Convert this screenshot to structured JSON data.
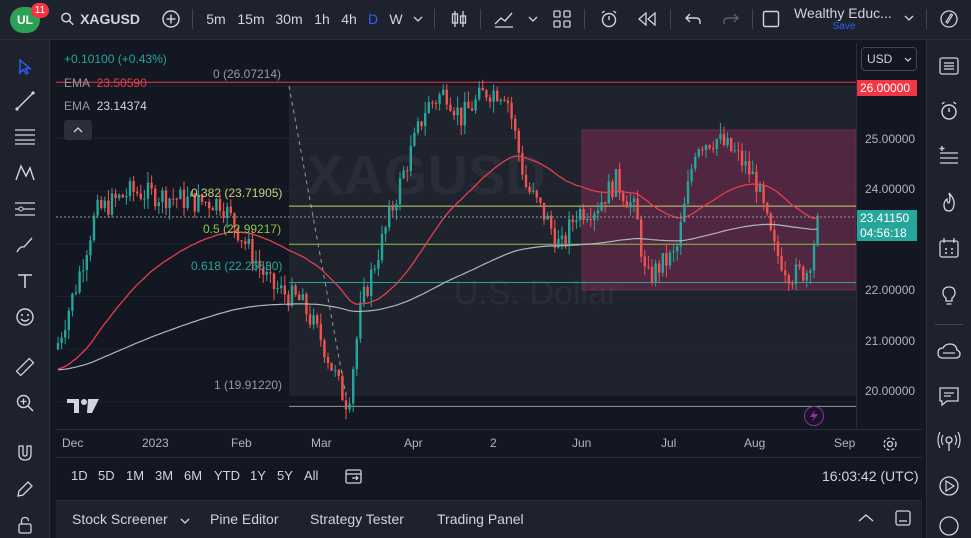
{
  "header": {
    "badge_count": "11",
    "symbol": "XAGUSD",
    "intervals": [
      "5m",
      "15m",
      "30m",
      "1h",
      "4h",
      "D",
      "W"
    ],
    "active_interval": "D",
    "layout_name": "Wealthy Educ...",
    "save_label": "Save"
  },
  "legend": {
    "change": "+0.10100 (+0.43%)",
    "ema1_label": "EMA",
    "ema1_value": "23.50590",
    "ema2_label": "EMA",
    "ema2_value": "23.14374"
  },
  "fib": {
    "f0": "0 (26.07214)",
    "f382": "0.382 (23.71905)",
    "f5": "0.5 (22.99217)",
    "f618": "0.618 (22.26530)",
    "f1": "1 (19.91220)"
  },
  "price_scale": {
    "currency": "USD",
    "labels": [
      "25.00000",
      "24.00000",
      "22.00000",
      "21.00000",
      "20.00000"
    ],
    "tag_high": "26.00000",
    "tag_last": "23.41150",
    "tag_countdown": "04:56:18"
  },
  "time_scale": {
    "labels": [
      "Dec",
      "2023",
      "Feb",
      "Mar",
      "Apr",
      "2",
      "Jun",
      "Jul",
      "Aug",
      "Sep"
    ]
  },
  "watermark": {
    "symbol": "XAGUSD",
    "name": "U.S. Dollar"
  },
  "range_bar": {
    "ranges": [
      "1D",
      "5D",
      "1M",
      "3M",
      "6M",
      "YTD",
      "1Y",
      "5Y",
      "All"
    ],
    "clock": "16:03:42 (UTC)"
  },
  "bottom_panel": {
    "tabs": [
      "Stock Screener",
      "Pine Editor",
      "Strategy Tester",
      "Trading Panel"
    ]
  },
  "colors": {
    "ema_fast": "#e53e4d",
    "ema_slow": "#b2b5be",
    "bull": "#26a69a",
    "bear": "#ef5350",
    "box": "#7b2a4f"
  },
  "chart_data": {
    "type": "candlestick",
    "y_range": [
      19.5,
      26.8
    ],
    "price_levels": [
      26.07214,
      23.71905,
      22.99217,
      22.2653,
      19.9122
    ],
    "last_price": 23.4115,
    "rectangle": {
      "from": "May",
      "to": "Aug",
      "top": 25.15,
      "bottom": 21.95
    }
  }
}
